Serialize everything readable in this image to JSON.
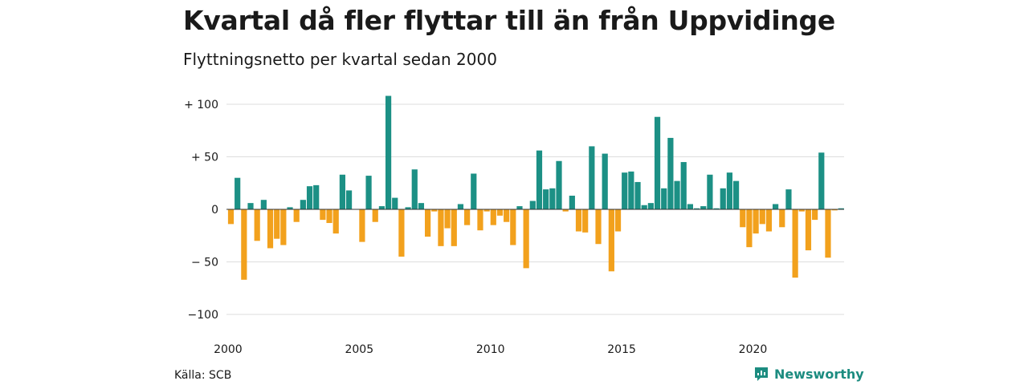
{
  "title": "Kvartal då fler flyttar till än från Uppvidinge",
  "subtitle": "Flyttningsnetto per kvartal sedan 2000",
  "source": "Källa: SCB",
  "brand": {
    "name": "Newsworthy",
    "icon": "newsworthy-logo-icon",
    "color": "#1c8c80"
  },
  "colors": {
    "positive": "#1c9085",
    "negative": "#f2a11d",
    "grid": "#dddddd",
    "zero_line": "#333333"
  },
  "chart_data": {
    "type": "bar",
    "title": "Kvartal då fler flyttar till än från Uppvidinge",
    "subtitle": "Flyttningsnetto per kvartal sedan 2000",
    "xlabel": "",
    "ylabel": "",
    "ylim": [
      -100,
      100
    ],
    "xlim": [
      "2000-Q1",
      "2023-Q2"
    ],
    "grid": true,
    "legend": "none",
    "y_ticks": [
      100,
      50,
      0,
      -50,
      -100
    ],
    "y_tick_labels": [
      "+ 100",
      "+  50",
      "0",
      "− 50",
      "−100"
    ],
    "x_ticks": [
      "2000",
      "2005",
      "2010",
      "2015",
      "2020"
    ],
    "categories": [
      "2000-Q1",
      "2000-Q2",
      "2000-Q3",
      "2000-Q4",
      "2001-Q1",
      "2001-Q2",
      "2001-Q3",
      "2001-Q4",
      "2002-Q1",
      "2002-Q2",
      "2002-Q3",
      "2002-Q4",
      "2003-Q1",
      "2003-Q2",
      "2003-Q3",
      "2003-Q4",
      "2004-Q1",
      "2004-Q2",
      "2004-Q3",
      "2004-Q4",
      "2005-Q1",
      "2005-Q2",
      "2005-Q3",
      "2005-Q4",
      "2006-Q1",
      "2006-Q2",
      "2006-Q3",
      "2006-Q4",
      "2007-Q1",
      "2007-Q2",
      "2007-Q3",
      "2007-Q4",
      "2008-Q1",
      "2008-Q2",
      "2008-Q3",
      "2008-Q4",
      "2009-Q1",
      "2009-Q2",
      "2009-Q3",
      "2009-Q4",
      "2010-Q1",
      "2010-Q2",
      "2010-Q3",
      "2010-Q4",
      "2011-Q1",
      "2011-Q2",
      "2011-Q3",
      "2011-Q4",
      "2012-Q1",
      "2012-Q2",
      "2012-Q3",
      "2012-Q4",
      "2013-Q1",
      "2013-Q2",
      "2013-Q3",
      "2013-Q4",
      "2014-Q1",
      "2014-Q2",
      "2014-Q3",
      "2014-Q4",
      "2015-Q1",
      "2015-Q2",
      "2015-Q3",
      "2015-Q4",
      "2016-Q1",
      "2016-Q2",
      "2016-Q3",
      "2016-Q4",
      "2017-Q1",
      "2017-Q2",
      "2017-Q3",
      "2017-Q4",
      "2018-Q1",
      "2018-Q2",
      "2018-Q3",
      "2018-Q4",
      "2019-Q1",
      "2019-Q2",
      "2019-Q3",
      "2019-Q4",
      "2020-Q1",
      "2020-Q2",
      "2020-Q3",
      "2020-Q4",
      "2021-Q1",
      "2021-Q2",
      "2021-Q3",
      "2021-Q4",
      "2022-Q1",
      "2022-Q2",
      "2022-Q3",
      "2022-Q4",
      "2023-Q1",
      "2023-Q2"
    ],
    "values": [
      -14,
      30,
      -67,
      6,
      -30,
      9,
      -37,
      -28,
      -34,
      2,
      -12,
      9,
      22,
      23,
      -10,
      -13,
      -23,
      33,
      18,
      0,
      -31,
      32,
      -12,
      3,
      108,
      11,
      -45,
      2,
      38,
      6,
      -26,
      -2,
      -35,
      -18,
      -35,
      5,
      -15,
      34,
      -20,
      -2,
      -15,
      -6,
      -12,
      -34,
      3,
      -56,
      8,
      56,
      19,
      20,
      46,
      -2,
      13,
      -21,
      -22,
      60,
      -33,
      53,
      -59,
      -21,
      35,
      36,
      26,
      4,
      6,
      88,
      20,
      68,
      27,
      45,
      5,
      1,
      3,
      33,
      1,
      20,
      35,
      27,
      -17,
      -36,
      -23,
      -14,
      -21,
      5,
      -17,
      19,
      -65,
      -2,
      -39,
      -10,
      54,
      -46,
      -1,
      1
    ]
  }
}
